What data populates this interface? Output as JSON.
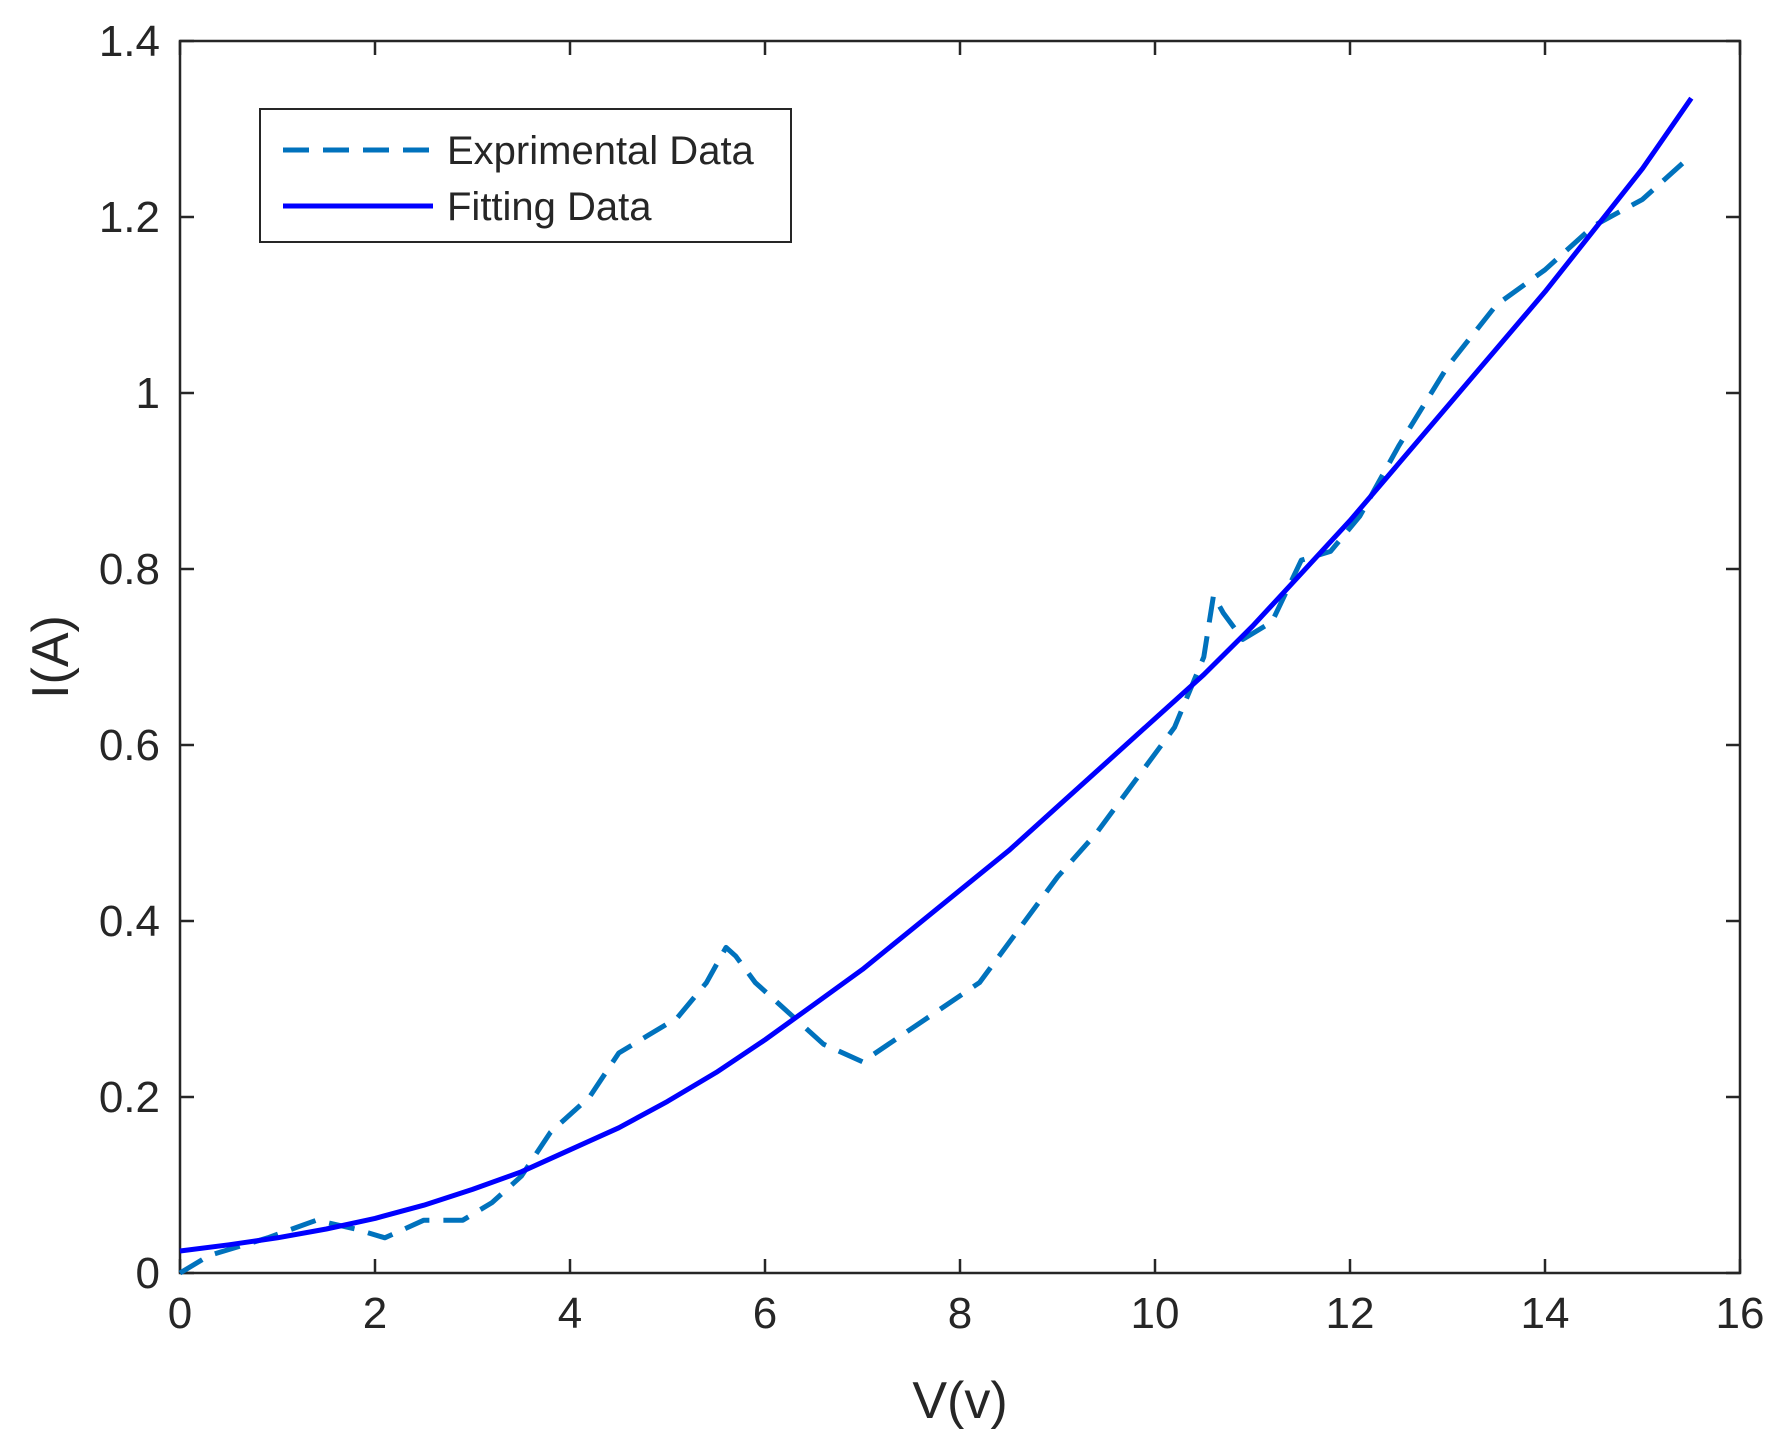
{
  "chart_data": {
    "type": "line",
    "title": "",
    "xlabel": "V(v)",
    "ylabel": "I(A)",
    "xlim": [
      0,
      16
    ],
    "ylim": [
      0,
      1.4
    ],
    "xticks": [
      0,
      2,
      4,
      6,
      8,
      10,
      12,
      14,
      16
    ],
    "xtick_labels": [
      "0",
      "2",
      "4",
      "6",
      "8",
      "10",
      "12",
      "14",
      "16"
    ],
    "yticks": [
      0,
      0.2,
      0.4,
      0.6,
      0.8,
      1.0,
      1.2,
      1.4
    ],
    "ytick_labels": [
      "0",
      "0.2",
      "0.4",
      "0.6",
      "0.8",
      "1",
      "1.2",
      "1.4"
    ],
    "grid": false,
    "legend_position": "top-left",
    "series": [
      {
        "name": "Exprimental Data",
        "style": "dashed",
        "color": "#0072BD",
        "x": [
          0.0,
          0.3,
          0.9,
          1.4,
          1.8,
          2.1,
          2.5,
          2.9,
          3.2,
          3.5,
          3.8,
          4.2,
          4.5,
          4.8,
          5.1,
          5.4,
          5.6,
          5.7,
          5.9,
          6.3,
          6.6,
          7.0,
          7.4,
          7.8,
          8.2,
          8.6,
          9.0,
          9.4,
          9.8,
          10.2,
          10.5,
          10.6,
          10.7,
          10.9,
          11.2,
          11.5,
          11.8,
          12.1,
          12.5,
          13.0,
          13.5,
          14.0,
          14.5,
          15.0,
          15.5
        ],
        "y": [
          0.0,
          0.02,
          0.04,
          0.06,
          0.05,
          0.04,
          0.06,
          0.06,
          0.08,
          0.11,
          0.16,
          0.2,
          0.25,
          0.27,
          0.29,
          0.33,
          0.37,
          0.36,
          0.33,
          0.29,
          0.26,
          0.24,
          0.27,
          0.3,
          0.33,
          0.39,
          0.45,
          0.5,
          0.56,
          0.62,
          0.7,
          0.77,
          0.75,
          0.72,
          0.74,
          0.81,
          0.82,
          0.86,
          0.94,
          1.03,
          1.1,
          1.14,
          1.19,
          1.22,
          1.27
        ]
      },
      {
        "name": "Fitting Data",
        "style": "solid",
        "color": "#0000FF",
        "x": [
          0,
          0.5,
          1,
          1.5,
          2,
          2.5,
          3,
          3.5,
          4,
          4.5,
          5,
          5.5,
          6,
          6.5,
          7,
          7.5,
          8,
          8.5,
          9,
          9.5,
          10,
          10.5,
          11,
          11.5,
          12,
          12.5,
          13,
          13.5,
          14,
          14.5,
          15,
          15.5
        ],
        "y": [
          0.025,
          0.032,
          0.04,
          0.05,
          0.062,
          0.077,
          0.095,
          0.115,
          0.14,
          0.165,
          0.195,
          0.228,
          0.265,
          0.305,
          0.345,
          0.39,
          0.435,
          0.48,
          0.53,
          0.58,
          0.63,
          0.68,
          0.735,
          0.795,
          0.855,
          0.92,
          0.985,
          1.05,
          1.115,
          1.185,
          1.255,
          1.335
        ]
      }
    ]
  }
}
